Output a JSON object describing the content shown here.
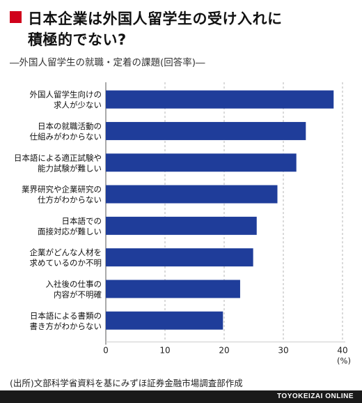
{
  "header": {
    "title_line1": "日本企業は外国人留学生の受け入れに",
    "title_line2": "積極的でない?",
    "subtitle": "―外国人留学生の就職・定着の課題(回答率)―"
  },
  "chart_data": {
    "type": "bar",
    "orientation": "horizontal",
    "categories": [
      [
        "外国人留学生向けの",
        "求人が少ない"
      ],
      [
        "日本の就職活動の",
        "仕組みがわからない"
      ],
      [
        "日本語による適正試験や",
        "能力試験が難しい"
      ],
      [
        "業界研究や企業研究の",
        "仕方がわからない"
      ],
      [
        "日本語での",
        "面接対応が難しい"
      ],
      [
        "企業がどんな人材を",
        "求めているのか不明"
      ],
      [
        "入社後の仕事の",
        "内容が不明確"
      ],
      [
        "日本語による書類の",
        "書き方がわからない"
      ]
    ],
    "values": [
      38.5,
      33.8,
      32.2,
      29.0,
      25.5,
      24.9,
      22.7,
      19.8
    ],
    "xlim": [
      0,
      40
    ],
    "xticks": [
      0,
      10,
      20,
      30,
      40
    ],
    "xunit": "(%)",
    "bar_color": "#1f3d9a",
    "grid": "vertical-dashed"
  },
  "source": "(出所)文部科学省資料を基にみずほ証券金融市場調査部作成",
  "footer": "TOYOKEIZAI ONLINE",
  "colors": {
    "accent": "#d0021b",
    "bar": "#1f3d9a"
  }
}
